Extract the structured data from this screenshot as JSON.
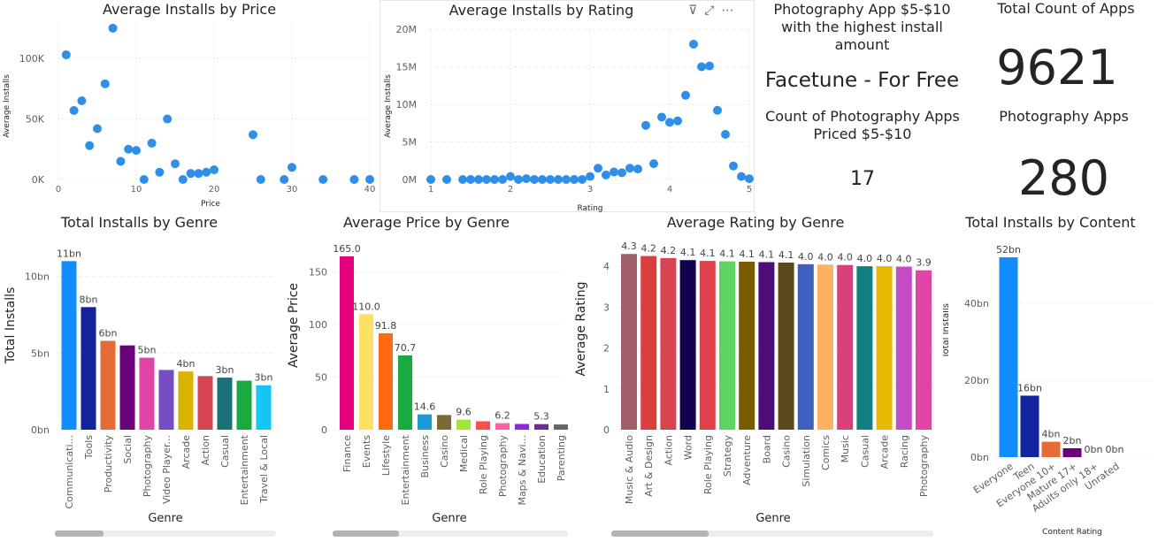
{
  "cards": {
    "photo_title": "Photography App $5-$10 with the highest install amount",
    "photo_app": "Facetune - For Free",
    "count_title": "Count of Photography Apps Priced $5-$10",
    "count_value": "17",
    "total_title": "Total Count of Apps",
    "total_value": "9621",
    "photo_apps_title": "Photography Apps",
    "photo_apps_value": "280"
  },
  "icons": {
    "filter": "filter-icon",
    "focus": "focus-mode-icon",
    "more": "more-options-icon"
  },
  "chart_data": [
    {
      "id": "price",
      "type": "scatter",
      "title": "Average Installs by Price",
      "xlabel": "Price",
      "ylabel": "Average Installs",
      "xlim": [
        0,
        40
      ],
      "ylim": [
        0,
        130000
      ],
      "xticks": [
        0,
        10,
        20,
        30,
        40
      ],
      "xticklabels": [
        "0",
        "10",
        "20",
        "30",
        "40"
      ],
      "yticks": [
        0,
        50000,
        100000
      ],
      "yticklabels": [
        "0K",
        "50K",
        "100K"
      ],
      "color": "#2f8fe8",
      "points": [
        [
          1,
          103000
        ],
        [
          2,
          57000
        ],
        [
          3,
          65000
        ],
        [
          4,
          28000
        ],
        [
          5,
          42000
        ],
        [
          6,
          79000
        ],
        [
          7,
          125000
        ],
        [
          8,
          15000
        ],
        [
          9,
          25000
        ],
        [
          10,
          24000
        ],
        [
          11,
          0
        ],
        [
          12,
          30000
        ],
        [
          13,
          6000
        ],
        [
          14,
          50000
        ],
        [
          15,
          13000
        ],
        [
          16,
          0
        ],
        [
          17,
          5000
        ],
        [
          18,
          5000
        ],
        [
          19,
          6000
        ],
        [
          20,
          8000
        ],
        [
          25,
          37000
        ],
        [
          26,
          0
        ],
        [
          29,
          0
        ],
        [
          30,
          10000
        ],
        [
          34,
          0
        ],
        [
          38,
          0
        ],
        [
          40,
          0
        ]
      ]
    },
    {
      "id": "rating",
      "type": "scatter",
      "title": "Average Installs by Rating",
      "xlabel": "Rating",
      "ylabel": "Average Installs",
      "xlim": [
        1,
        5
      ],
      "ylim": [
        0,
        20000000
      ],
      "xticks": [
        1,
        2,
        3,
        4,
        5
      ],
      "xticklabels": [
        "1",
        "2",
        "3",
        "4",
        "5"
      ],
      "yticks": [
        0,
        5000000,
        10000000,
        15000000,
        20000000
      ],
      "yticklabels": [
        "0M",
        "5M",
        "10M",
        "15M",
        "20M"
      ],
      "color": "#2f8fe8",
      "points": [
        [
          1.0,
          0
        ],
        [
          1.2,
          0
        ],
        [
          1.4,
          0
        ],
        [
          1.5,
          0
        ],
        [
          1.6,
          0
        ],
        [
          1.7,
          0
        ],
        [
          1.8,
          0
        ],
        [
          1.9,
          0
        ],
        [
          2.0,
          400000
        ],
        [
          2.1,
          0
        ],
        [
          2.2,
          100000
        ],
        [
          2.3,
          0
        ],
        [
          2.4,
          0
        ],
        [
          2.5,
          0
        ],
        [
          2.6,
          0
        ],
        [
          2.7,
          0
        ],
        [
          2.8,
          0
        ],
        [
          2.9,
          0
        ],
        [
          3.0,
          400000
        ],
        [
          3.1,
          1500000
        ],
        [
          3.2,
          600000
        ],
        [
          3.3,
          1000000
        ],
        [
          3.4,
          900000
        ],
        [
          3.5,
          1500000
        ],
        [
          3.6,
          1400000
        ],
        [
          3.7,
          7200000
        ],
        [
          3.8,
          2100000
        ],
        [
          3.9,
          8300000
        ],
        [
          4.0,
          7600000
        ],
        [
          4.1,
          7800000
        ],
        [
          4.2,
          11200000
        ],
        [
          4.3,
          18000000
        ],
        [
          4.4,
          15000000
        ],
        [
          4.5,
          15100000
        ],
        [
          4.6,
          9200000
        ],
        [
          4.7,
          6000000
        ],
        [
          4.8,
          1800000
        ],
        [
          4.9,
          400000
        ],
        [
          5.0,
          100000
        ]
      ]
    },
    {
      "id": "genre_installs",
      "type": "bar",
      "title": "Total Installs by Genre",
      "xlabel": "Genre",
      "ylabel": "Total Installs",
      "ylim": [
        0,
        12000000000
      ],
      "yticks": [
        0,
        5000000000,
        10000000000
      ],
      "yticklabels": [
        "0bn",
        "5bn",
        "10bn"
      ],
      "categories": [
        "Communicati...",
        "Tools",
        "Productivity",
        "Social",
        "Photography",
        "Video Player...",
        "Arcade",
        "Action",
        "Casual",
        "Entertainment",
        "Travel & Local"
      ],
      "values": [
        11000000000,
        8000000000,
        5800000000,
        5500000000,
        4700000000,
        3900000000,
        3800000000,
        3500000000,
        3400000000,
        3200000000,
        2900000000
      ],
      "labels": [
        "11bn",
        "8bn",
        "6bn",
        "",
        "5bn",
        "",
        "4bn",
        "",
        "3bn",
        "",
        "3bn"
      ],
      "colors": [
        "#118dff",
        "#12239e",
        "#e66c37",
        "#6b007b",
        "#e044a7",
        "#744ec2",
        "#d9b300",
        "#d64550",
        "#197278",
        "#1aab40",
        "#15c6f4"
      ]
    },
    {
      "id": "genre_price",
      "type": "bar",
      "title": "Average Price by Genre",
      "xlabel": "Genre",
      "ylabel": "Average Price",
      "ylim": [
        0,
        175
      ],
      "yticks": [
        0,
        50,
        100,
        150
      ],
      "yticklabels": [
        "0",
        "50",
        "100",
        "150"
      ],
      "categories": [
        "Finance",
        "Events",
        "Lifestyle",
        "Entertainment",
        "Business",
        "Casino",
        "Medical",
        "Role Playing",
        "Photography",
        "Maps & Navi...",
        "Education",
        "Parenting"
      ],
      "values": [
        165.0,
        110.0,
        91.8,
        70.7,
        14.6,
        14.0,
        9.6,
        8.0,
        6.2,
        5.5,
        5.3,
        5.0
      ],
      "labels": [
        "165.0",
        "110.0",
        "91.8",
        "70.7",
        "14.6",
        "",
        "9.6",
        "",
        "6.2",
        "",
        "5.3",
        ""
      ],
      "colors": [
        "#e6007e",
        "#ffe066",
        "#ff6a13",
        "#1aab40",
        "#1b9bd7",
        "#7b6a36",
        "#a3e635",
        "#ff4d4d",
        "#ff5fa2",
        "#8a2be2",
        "#6b2d90",
        "#666666"
      ]
    },
    {
      "id": "genre_rating",
      "type": "bar",
      "title": "Average Rating by Genre",
      "xlabel": "Genre",
      "ylabel": "Average Rating",
      "ylim": [
        0,
        4.5
      ],
      "yticks": [
        0,
        1,
        2,
        3,
        4
      ],
      "yticklabels": [
        "0",
        "1",
        "2",
        "3",
        "4"
      ],
      "categories": [
        "Music & Audio",
        "Art & Design",
        "Action",
        "Word",
        "Role Playing",
        "Strategy",
        "Adventure",
        "Board",
        "Casino",
        "Simulation",
        "Comics",
        "Music",
        "Casual",
        "Arcade",
        "Racing",
        "Photography"
      ],
      "values": [
        4.3,
        4.25,
        4.2,
        4.15,
        4.13,
        4.12,
        4.11,
        4.1,
        4.09,
        4.05,
        4.04,
        4.03,
        4.0,
        4.0,
        3.99,
        3.9
      ],
      "labels": [
        "4.3",
        "4.2",
        "4.2",
        "4.1",
        "4.1",
        "4.1",
        "4.1",
        "4.1",
        "4.1",
        "4.0",
        "4.0",
        "4.0",
        "4.0",
        "4.0",
        "4.0",
        "3.9"
      ],
      "colors": [
        "#a0606b",
        "#d93f3f",
        "#d64550",
        "#12004d",
        "#e0404a",
        "#5fd35f",
        "#7a5c00",
        "#4b0d7a",
        "#5c4a1a",
        "#4060c0",
        "#ffb060",
        "#d9407a",
        "#118080",
        "#e6b800",
        "#c44dc4",
        "#e044a7"
      ]
    },
    {
      "id": "content",
      "type": "bar",
      "title": "Total Installs by Content",
      "xlabel": "Content Rating",
      "ylabel": "Total Installs",
      "ylim": [
        0,
        55000000000
      ],
      "yticks": [
        0,
        20000000000,
        40000000000
      ],
      "yticklabels": [
        "0bn",
        "20bn",
        "40bn"
      ],
      "categories": [
        "Everyone",
        "Teen",
        "Everyone 10+",
        "Mature 17+",
        "Adults only 18+",
        "Unrated"
      ],
      "values": [
        52000000000,
        16000000000,
        4000000000,
        2300000000,
        0,
        0
      ],
      "labels": [
        "52bn",
        "16bn",
        "4bn",
        "2bn",
        "0bn",
        "0bn"
      ],
      "colors": [
        "#118dff",
        "#12239e",
        "#e66c37",
        "#6b007b",
        "#e044a7",
        "#744ec2"
      ]
    }
  ]
}
